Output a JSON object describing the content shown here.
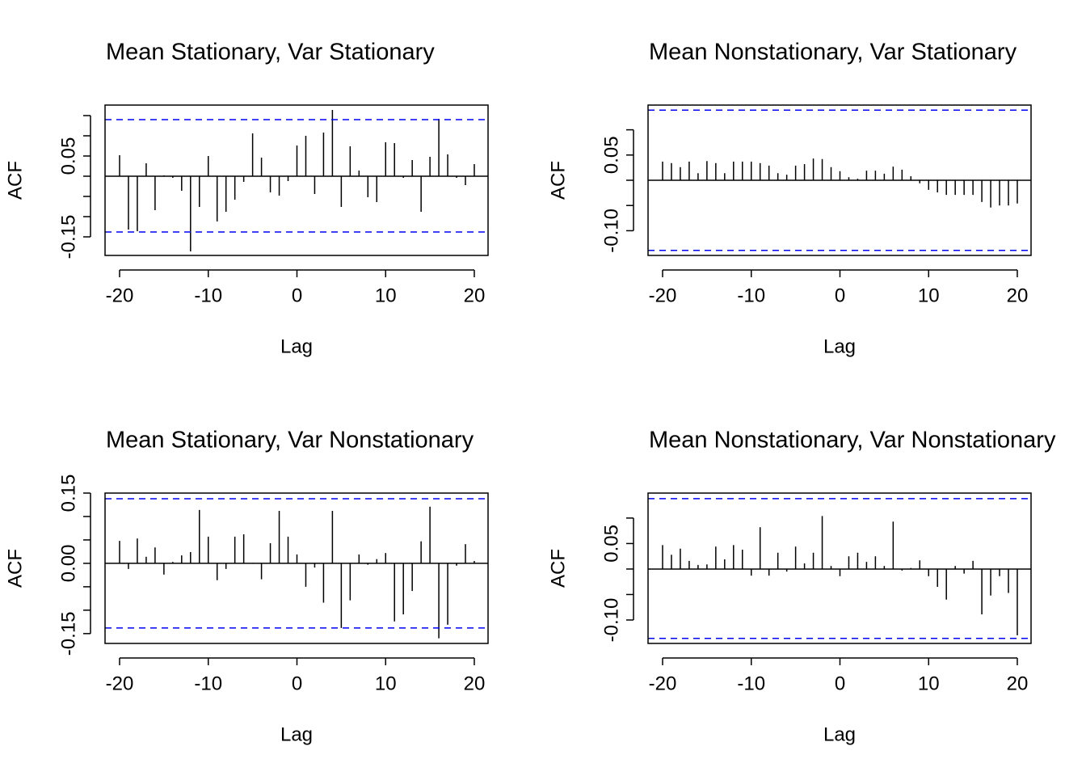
{
  "chart_data": [
    {
      "type": "bar",
      "title": "Mean Stationary, Var Stationary",
      "x_label": "Lag",
      "y_label": "ACF",
      "color": "#000000",
      "ci_color": "#0000ff",
      "x": [
        -20,
        -19,
        -18,
        -17,
        -16,
        -15,
        -14,
        -13,
        -12,
        -11,
        -10,
        -9,
        -8,
        -7,
        -6,
        -5,
        -4,
        -3,
        -2,
        -1,
        0,
        1,
        2,
        3,
        4,
        5,
        6,
        7,
        8,
        9,
        10,
        11,
        12,
        13,
        14,
        15,
        16,
        17,
        18,
        19,
        20
      ],
      "values": [
        0.052,
        -0.132,
        -0.136,
        0.032,
        -0.084,
        0.002,
        -0.004,
        -0.036,
        -0.186,
        -0.076,
        0.05,
        -0.112,
        -0.088,
        -0.058,
        -0.014,
        0.106,
        0.046,
        -0.04,
        -0.048,
        -0.012,
        0.076,
        0.1,
        -0.044,
        0.108,
        0.164,
        -0.076,
        0.074,
        0.014,
        -0.052,
        -0.064,
        0.084,
        0.082,
        -0.004,
        0.04,
        -0.088,
        0.048,
        0.142,
        0.054,
        -0.004,
        -0.022,
        0.03
      ],
      "xlim": [
        -21.64,
        21.55
      ],
      "xticks": [
        -20,
        -10,
        0,
        10,
        20
      ],
      "ylim": [
        -0.196,
        0.176
      ],
      "yticks": [
        -0.15,
        0.05
      ],
      "y_minor_ticks": [
        -0.1,
        -0.05,
        0,
        0.1,
        0.15
      ],
      "ci_lines": [
        0.14,
        -0.138
      ]
    },
    {
      "type": "bar",
      "title": "Mean Nonstationary, Var Stationary",
      "x_label": "Lag",
      "y_label": "ACF",
      "color": "#000000",
      "ci_color": "#0000ff",
      "x": [
        -20,
        -19,
        -18,
        -17,
        -16,
        -15,
        -14,
        -13,
        -12,
        -11,
        -10,
        -9,
        -8,
        -7,
        -6,
        -5,
        -4,
        -3,
        -2,
        -1,
        0,
        1,
        2,
        3,
        4,
        5,
        6,
        7,
        8,
        9,
        10,
        11,
        12,
        13,
        14,
        15,
        16,
        17,
        18,
        19,
        20
      ],
      "values": [
        0.037,
        0.034,
        0.026,
        0.037,
        0.014,
        0.038,
        0.034,
        0.014,
        0.037,
        0.037,
        0.037,
        0.034,
        0.029,
        0.014,
        0.011,
        0.029,
        0.032,
        0.043,
        0.042,
        0.026,
        0.018,
        0.006,
        0.003,
        0.019,
        0.019,
        0.013,
        0.027,
        0.021,
        0.008,
        -0.006,
        -0.019,
        -0.024,
        -0.029,
        -0.029,
        -0.029,
        -0.029,
        -0.043,
        -0.054,
        -0.05,
        -0.05,
        -0.046
      ],
      "xlim": [
        -21.64,
        21.55
      ],
      "xticks": [
        -20,
        -10,
        0,
        10,
        20
      ],
      "ylim": [
        -0.149,
        0.149
      ],
      "yticks": [
        {
          "value": -0.1,
          "label": "-0.10"
        },
        0.05
      ],
      "y_minor_ticks": [
        -0.05,
        0,
        0.1
      ],
      "ci_lines": [
        0.139,
        -0.139
      ]
    },
    {
      "type": "bar",
      "title": "Mean Stationary, Var Nonstationary",
      "x_label": "Lag",
      "y_label": "ACF",
      "color": "#000000",
      "ci_color": "#0000ff",
      "x": [
        -20,
        -19,
        -18,
        -17,
        -16,
        -15,
        -14,
        -13,
        -12,
        -11,
        -10,
        -9,
        -8,
        -7,
        -6,
        -5,
        -4,
        -3,
        -2,
        -1,
        0,
        1,
        2,
        3,
        4,
        5,
        6,
        7,
        8,
        9,
        10,
        11,
        12,
        13,
        14,
        15,
        16,
        17,
        18,
        19,
        20
      ],
      "values": [
        0.048,
        -0.012,
        0.053,
        0.014,
        0.034,
        -0.024,
        0.003,
        0.017,
        0.024,
        0.114,
        0.057,
        -0.036,
        -0.012,
        0.057,
        0.062,
        0.001,
        -0.034,
        0.043,
        0.112,
        0.057,
        0.019,
        -0.05,
        -0.009,
        -0.084,
        0.112,
        -0.138,
        -0.079,
        0.019,
        -0.003,
        0.009,
        0.022,
        -0.124,
        -0.109,
        -0.059,
        0.047,
        0.121,
        -0.16,
        -0.131,
        -0.005,
        0.041,
        0.005
      ],
      "xlim": [
        -21.64,
        21.55
      ],
      "xticks": [
        -20,
        -10,
        0,
        10,
        20
      ],
      "ylim": [
        -0.171,
        0.15
      ],
      "yticks": [
        -0.15,
        {
          "value": 0,
          "label": "0.00"
        },
        0.15
      ],
      "y_minor_ticks": [
        -0.1,
        -0.05,
        0.05,
        0.1
      ],
      "ci_lines": [
        0.138,
        -0.138
      ]
    },
    {
      "type": "bar",
      "title": "Mean Nonstationary, Var Nonstationary",
      "x_label": "Lag",
      "y_label": "ACF",
      "color": "#000000",
      "ci_color": "#0000ff",
      "x": [
        -20,
        -19,
        -18,
        -17,
        -16,
        -15,
        -14,
        -13,
        -12,
        -11,
        -10,
        -9,
        -8,
        -7,
        -6,
        -5,
        -4,
        -3,
        -2,
        -1,
        0,
        1,
        2,
        3,
        4,
        5,
        6,
        7,
        8,
        9,
        10,
        11,
        12,
        13,
        14,
        15,
        16,
        17,
        18,
        19,
        20
      ],
      "values": [
        0.047,
        0.028,
        0.04,
        0.016,
        0.008,
        0.009,
        0.044,
        0.019,
        0.047,
        0.038,
        -0.013,
        0.082,
        -0.013,
        0.032,
        -0.005,
        0.044,
        0.011,
        0.032,
        0.104,
        0.006,
        -0.014,
        0.025,
        0.032,
        0.014,
        0.025,
        0.006,
        0.093,
        -0.003,
        0.002,
        0.017,
        -0.014,
        -0.035,
        -0.06,
        0.006,
        -0.009,
        0.016,
        -0.089,
        -0.052,
        -0.014,
        -0.047,
        -0.13
      ],
      "xlim": [
        -21.64,
        21.55
      ],
      "xticks": [
        -20,
        -10,
        0,
        10,
        20
      ],
      "ylim": [
        -0.146,
        0.149
      ],
      "yticks": [
        {
          "value": -0.1,
          "label": "-0.10"
        },
        0.05
      ],
      "y_minor_ticks": [
        -0.05,
        0,
        0.1
      ],
      "ci_lines": [
        0.138,
        -0.136
      ]
    }
  ]
}
